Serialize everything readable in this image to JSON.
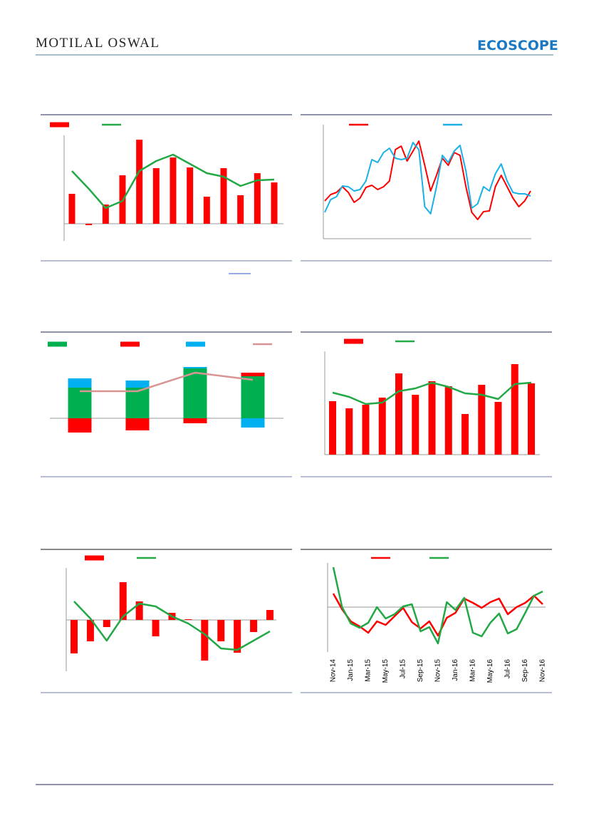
{
  "header": {
    "brand": "MOTILAL OSWAL",
    "logo": "ECOSCOPE"
  },
  "chart_data": [
    {
      "type": "bar",
      "ylim": [
        -24,
        124
      ],
      "series": [
        {
          "type": "bar",
          "color": "#ff0000",
          "values": [
            42,
            -2,
            27,
            68,
            118,
            78,
            93,
            79,
            38,
            78,
            40,
            71,
            58
          ]
        },
        {
          "type": "line",
          "color": "#22a845",
          "values": [
            74,
            49,
            22,
            32,
            74,
            88,
            97,
            84,
            71,
            66,
            53,
            61,
            62
          ]
        }
      ]
    },
    {
      "type": "line",
      "ylim": [
        0,
        160
      ],
      "series": [
        {
          "type": "line",
          "color": "#ff0000",
          "values": [
            53,
            62,
            65,
            73,
            65,
            51,
            57,
            72,
            75,
            69,
            73,
            81,
            125,
            130,
            109,
            123,
            137,
            103,
            67,
            89,
            113,
            103,
            121,
            117,
            73,
            37,
            27,
            38,
            39,
            73,
            89,
            73,
            57,
            45,
            53,
            67
          ]
        },
        {
          "type": "line",
          "color": "#1ab0e8",
          "values": [
            37,
            55,
            59,
            74,
            73,
            67,
            69,
            81,
            111,
            107,
            121,
            127,
            113,
            111,
            113,
            135,
            125,
            45,
            35,
            73,
            117,
            107,
            123,
            131,
            95,
            43,
            49,
            73,
            67,
            91,
            105,
            81,
            65,
            63,
            63,
            60
          ]
        }
      ]
    },
    {
      "type": "stacked_bar",
      "ylim": [
        -35,
        85
      ],
      "series": [
        {
          "type": "bar",
          "color": "#00b050",
          "values": [
            43,
            43,
            70,
            59
          ]
        },
        {
          "type": "bar",
          "color": "#ff0000",
          "values": [
            -20,
            -17,
            -7,
            5
          ]
        },
        {
          "type": "bar",
          "color": "#00b0f0",
          "values": [
            13,
            10,
            2,
            -13
          ]
        },
        {
          "type": "line",
          "color": "#d99594",
          "values": [
            38,
            38,
            64,
            54
          ]
        }
      ]
    },
    {
      "type": "bar",
      "ylim": [
        0,
        145
      ],
      "series": [
        {
          "type": "bar",
          "color": "#ff0000",
          "values": [
            75,
            65,
            70,
            80,
            114,
            84,
            103,
            96,
            57,
            98,
            74,
            127,
            100
          ]
        },
        {
          "type": "line",
          "color": "#22a845",
          "values": [
            87,
            81,
            71,
            73,
            89,
            93,
            101,
            95,
            86,
            84,
            78,
            99,
            101
          ]
        }
      ]
    },
    {
      "type": "bar",
      "ylim": [
        -72,
        73
      ],
      "series": [
        {
          "type": "bar",
          "color": "#ff0000",
          "values": [
            -47,
            -30,
            -10,
            53,
            26,
            -23,
            10,
            1,
            -57,
            -30,
            -46,
            -17,
            14
          ]
        },
        {
          "type": "line",
          "color": "#22a845",
          "values": [
            26,
            2,
            -29,
            5,
            23,
            19,
            5,
            -5,
            -20,
            -40,
            -42,
            -29,
            -16
          ]
        }
      ]
    },
    {
      "type": "line",
      "ylim": [
        -63,
        62
      ],
      "categories": [
        "Nov-14",
        null,
        "Jan-15",
        null,
        "Mar-15",
        null,
        "May-15",
        null,
        "Jul-15",
        null,
        "Sep-15",
        null,
        "Nov-15",
        null,
        "Jan-16",
        null,
        "Mar-16",
        null,
        "May-16",
        null,
        "Jul-16",
        null,
        "Sep-16",
        null,
        "Nov-16"
      ],
      "series": [
        {
          "type": "line",
          "color": "#ff0000",
          "values": [
            19,
            -3,
            -20,
            -27,
            -36,
            -20,
            -25,
            -13,
            -1,
            -21,
            -30,
            -20,
            -40,
            -15,
            -8,
            12,
            6,
            -1,
            7,
            12,
            -10,
            0,
            6,
            16,
            4
          ]
        },
        {
          "type": "line",
          "color": "#22a845",
          "values": [
            56,
            0,
            -23,
            -29,
            -22,
            0,
            -16,
            -10,
            1,
            4,
            -34,
            -28,
            -51,
            7,
            -4,
            13,
            -36,
            -41,
            -22,
            -9,
            -37,
            -31,
            -8,
            16,
            22
          ]
        }
      ]
    }
  ]
}
